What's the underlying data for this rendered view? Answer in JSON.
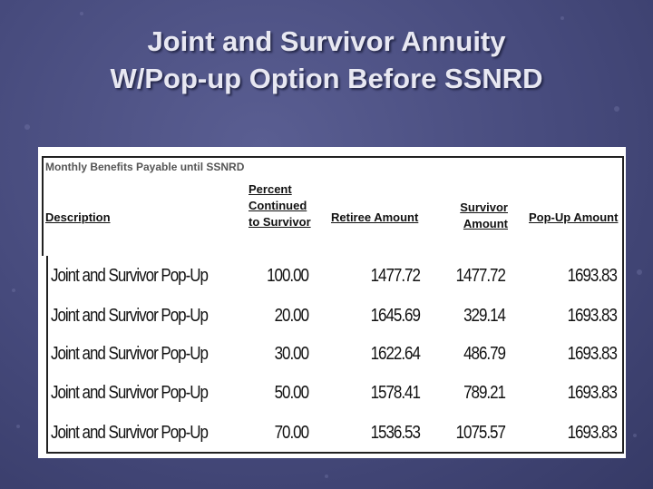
{
  "title": {
    "lines": [
      "Joint and Survivor Annuity",
      "W/Pop-up Option Before SSNRD"
    ]
  },
  "table": {
    "caption": "Monthly Benefits Payable until SSNRD",
    "headers": [
      "Description",
      "Percent Continued to Survivor",
      "Retiree Amount",
      "Survivor Amount",
      "Pop-Up Amount"
    ],
    "rows": [
      [
        "Joint and Survivor Pop-Up",
        "100.00",
        "1477.72",
        "1477.72",
        "1693.83"
      ],
      [
        "Joint and Survivor Pop-Up",
        "20.00",
        "1645.69",
        "329.14",
        "1693.83"
      ],
      [
        "Joint and Survivor Pop-Up",
        "30.00",
        "1622.64",
        "486.79",
        "1693.83"
      ],
      [
        "Joint and Survivor Pop-Up",
        "50.00",
        "1578.41",
        "789.21",
        "1693.83"
      ],
      [
        "Joint and Survivor Pop-Up",
        "70.00",
        "1536.53",
        "1075.57",
        "1693.83"
      ]
    ]
  }
}
